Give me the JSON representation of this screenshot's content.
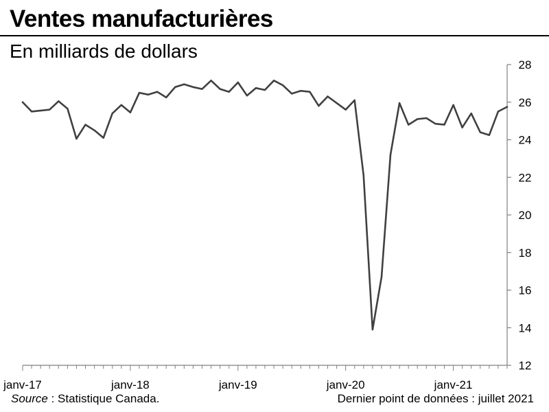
{
  "header": {
    "title": "Ventes manufacturières",
    "subtitle": "En milliards de dollars"
  },
  "footer": {
    "source_label": "Source",
    "source_text": " : Statistique Canada.",
    "last_point": "Dernier point de données : juillet 2021"
  },
  "colors": {
    "line": "#404040",
    "axis": "#7f7f7f"
  },
  "chart_data": {
    "type": "line",
    "title": "Ventes manufacturières",
    "ylabel": "En milliards de dollars",
    "xlabel": "",
    "ylim": [
      12,
      28
    ],
    "yticks": [
      12,
      14,
      16,
      18,
      20,
      22,
      24,
      26,
      28
    ],
    "grid": false,
    "x_tick_labels": [
      "janv-17",
      "janv-18",
      "janv-19",
      "janv-20",
      "janv-21"
    ],
    "x_tick_index": [
      0,
      12,
      24,
      36,
      48
    ],
    "series": [
      {
        "name": "Ventes manufacturières",
        "start": "janv-17",
        "end": "juil-21",
        "values": [
          26.0,
          25.5,
          25.55,
          25.6,
          26.05,
          25.65,
          24.05,
          24.8,
          24.5,
          24.1,
          25.4,
          25.85,
          25.45,
          26.5,
          26.4,
          26.55,
          26.25,
          26.8,
          26.95,
          26.8,
          26.7,
          27.15,
          26.7,
          26.55,
          27.05,
          26.35,
          26.75,
          26.65,
          27.15,
          26.9,
          26.45,
          26.6,
          26.55,
          25.8,
          26.3,
          25.95,
          25.6,
          26.1,
          22.1,
          13.9,
          16.7,
          23.2,
          25.95,
          24.8,
          25.1,
          25.15,
          24.85,
          24.8,
          25.85,
          24.65,
          25.4,
          24.4,
          24.25,
          25.5,
          25.75
        ]
      }
    ]
  }
}
